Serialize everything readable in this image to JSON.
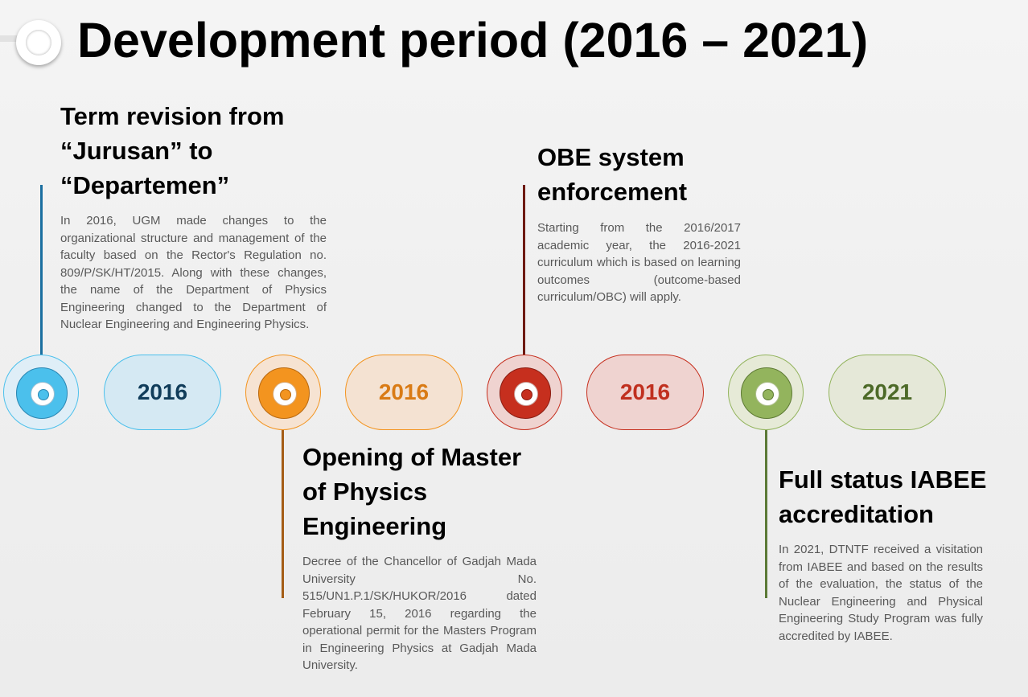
{
  "title": "Development period (2016 – 2021)",
  "colors": {
    "blue": "#4bc0ec",
    "orange": "#f3941f",
    "red": "#c62f1e",
    "green": "#93b45d"
  },
  "events": [
    {
      "year": "2016",
      "heading_lines": [
        "Term revision from",
        "“Jurusan” to",
        "“Departemen”"
      ],
      "text": "In 2016, UGM made changes to the organizational structure and management of the faculty based on the Rector's Regulation no. 809/P/SK/HT/2015. Along with these changes, the name of the Department of Physics Engineering changed to the Department of Nuclear Engineering and Engineering Physics."
    },
    {
      "year": "2016",
      "heading_lines": [
        "Opening of Master",
        "of Physics",
        "Engineering"
      ],
      "text": "Decree of the Chancellor of Gadjah Mada University No. 515/UN1.P.1/SK/HUKOR/2016 dated February 15, 2016 regarding the operational permit for the Masters Program in Engineering Physics at Gadjah Mada University."
    },
    {
      "year": "2016",
      "heading_lines": [
        "OBE system",
        "enforcement"
      ],
      "text": "Starting from the 2016/2017 academic year, the 2016-2021 curriculum which is based on learning outcomes (outcome-based curriculum/OBC) will apply."
    },
    {
      "year": "2021",
      "heading_lines": [
        "Full status IABEE",
        "accreditation"
      ],
      "text": "In 2021, DTNTF received a visitation from IABEE and based on the results of the evaluation, the status of the Nuclear Engineering and Physical Engineering Study Program was fully accredited by IABEE."
    }
  ]
}
